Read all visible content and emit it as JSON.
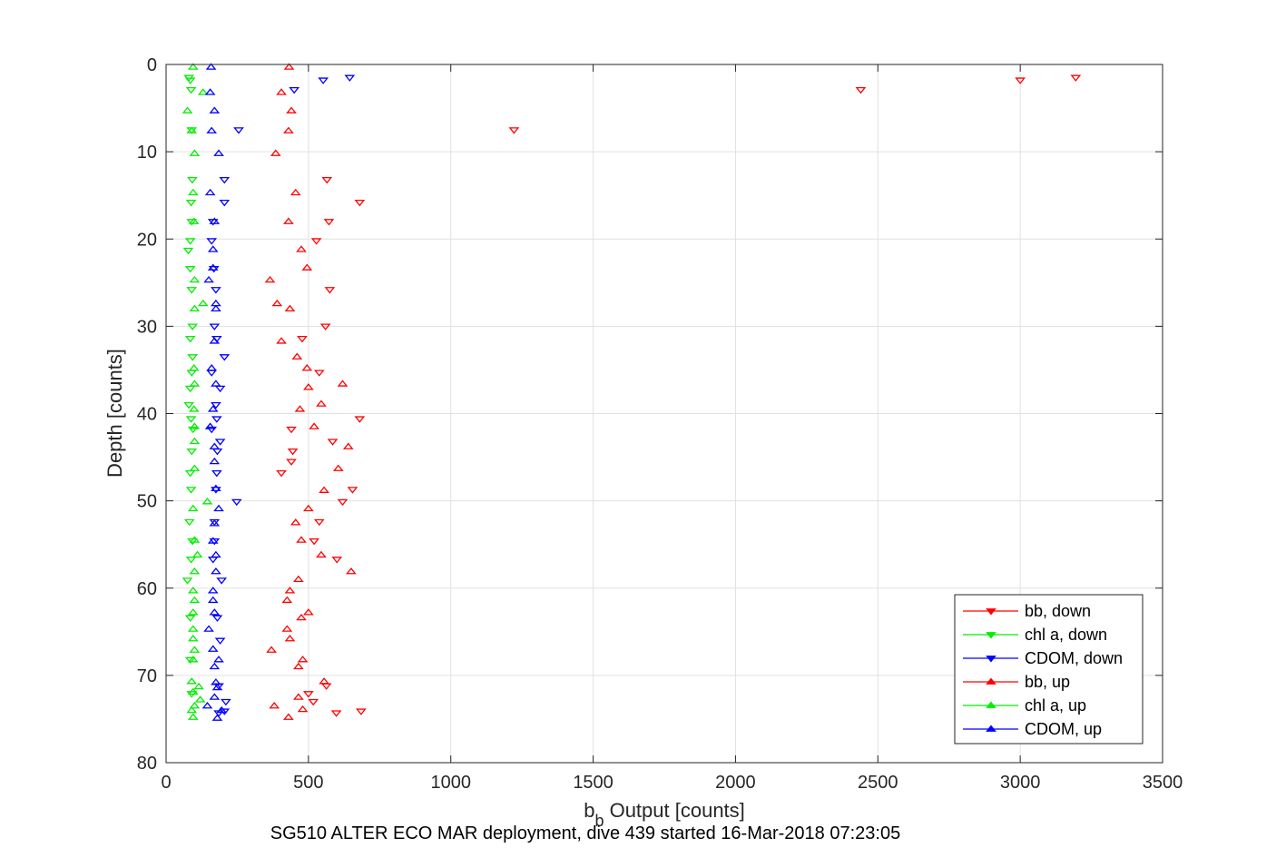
{
  "chart_data": {
    "type": "scatter",
    "caption": "SG510 ALTER ECO MAR deployment, dive 439 started 16-Mar-2018 07:23:05",
    "xlabel_main": "b",
    "xlabel_sub": "b",
    "xlabel_rest": " Output [counts]",
    "ylabel": "Depth [counts]",
    "xlim": [
      0,
      3500
    ],
    "ylim": [
      0,
      80
    ],
    "y_reversed": true,
    "grid": true,
    "xticks": [
      0,
      500,
      1000,
      1500,
      2000,
      2500,
      3000,
      3500
    ],
    "xtick_labels": [
      "0",
      "500",
      "1000",
      "1500",
      "2000",
      "2500",
      "3000",
      "3500"
    ],
    "yticks": [
      0,
      10,
      20,
      30,
      40,
      50,
      60,
      70,
      80
    ],
    "ytick_labels": [
      "0",
      "10",
      "20",
      "30",
      "40",
      "50",
      "60",
      "70",
      "80"
    ],
    "legend_position": "bottom-right",
    "series": [
      {
        "name": "bb, down",
        "color": "#ff0000",
        "marker": "triangle-down",
        "points": [
          [
            3195,
            1.5
          ],
          [
            3000,
            1.8
          ],
          [
            2440,
            2.9
          ],
          [
            1222,
            7.5
          ],
          [
            565,
            13.2
          ],
          [
            680,
            15.8
          ],
          [
            572,
            18.0
          ],
          [
            528,
            20.2
          ],
          [
            575,
            25.8
          ],
          [
            560,
            30.0
          ],
          [
            478,
            31.4
          ],
          [
            538,
            35.3
          ],
          [
            680,
            40.6
          ],
          [
            440,
            41.8
          ],
          [
            585,
            43.2
          ],
          [
            445,
            44.3
          ],
          [
            440,
            45.5
          ],
          [
            405,
            46.8
          ],
          [
            655,
            48.7
          ],
          [
            620,
            50.1
          ],
          [
            538,
            52.4
          ],
          [
            520,
            54.6
          ],
          [
            600,
            56.7
          ],
          [
            500,
            72.1
          ],
          [
            517,
            73.0
          ],
          [
            598,
            74.3
          ],
          [
            685,
            74.1
          ],
          [
            563,
            71.2
          ]
        ]
      },
      {
        "name": "chl a, down",
        "color": "#00ee00",
        "marker": "triangle-down",
        "points": [
          [
            80,
            1.5
          ],
          [
            85,
            1.8
          ],
          [
            88,
            2.9
          ],
          [
            90,
            7.5
          ],
          [
            92,
            13.2
          ],
          [
            88,
            15.8
          ],
          [
            90,
            18.0
          ],
          [
            85,
            20.2
          ],
          [
            78,
            21.3
          ],
          [
            85,
            23.4
          ],
          [
            90,
            25.8
          ],
          [
            93,
            30.0
          ],
          [
            85,
            31.4
          ],
          [
            93,
            33.5
          ],
          [
            90,
            35.3
          ],
          [
            85,
            37.1
          ],
          [
            80,
            39.0
          ],
          [
            88,
            40.6
          ],
          [
            95,
            41.8
          ],
          [
            90,
            44.3
          ],
          [
            85,
            46.8
          ],
          [
            88,
            48.7
          ],
          [
            82,
            52.4
          ],
          [
            93,
            54.6
          ],
          [
            88,
            56.7
          ],
          [
            75,
            59.1
          ],
          [
            85,
            63.4
          ],
          [
            85,
            68.2
          ],
          [
            90,
            72.1
          ]
        ]
      },
      {
        "name": "CDOM, down",
        "color": "#0000ff",
        "marker": "triangle-down",
        "points": [
          [
            645,
            1.5
          ],
          [
            552,
            1.8
          ],
          [
            450,
            2.9
          ],
          [
            255,
            7.5
          ],
          [
            205,
            13.2
          ],
          [
            205,
            15.8
          ],
          [
            165,
            18.0
          ],
          [
            160,
            20.2
          ],
          [
            168,
            23.4
          ],
          [
            175,
            25.8
          ],
          [
            170,
            30.0
          ],
          [
            178,
            31.4
          ],
          [
            205,
            33.5
          ],
          [
            160,
            35.3
          ],
          [
            190,
            37.1
          ],
          [
            175,
            39.0
          ],
          [
            178,
            40.6
          ],
          [
            160,
            41.8
          ],
          [
            190,
            43.2
          ],
          [
            180,
            44.3
          ],
          [
            178,
            46.8
          ],
          [
            175,
            48.7
          ],
          [
            248,
            50.1
          ],
          [
            170,
            52.4
          ],
          [
            170,
            54.6
          ],
          [
            165,
            56.7
          ],
          [
            195,
            59.1
          ],
          [
            180,
            63.4
          ],
          [
            190,
            66.0
          ],
          [
            185,
            71.2
          ],
          [
            210,
            73.0
          ],
          [
            185,
            74.3
          ],
          [
            205,
            74.1
          ]
        ]
      },
      {
        "name": "bb, up",
        "color": "#ff0000",
        "marker": "triangle-up",
        "points": [
          [
            432,
            0.3
          ],
          [
            405,
            3.2
          ],
          [
            440,
            5.3
          ],
          [
            430,
            7.6
          ],
          [
            385,
            10.2
          ],
          [
            455,
            14.7
          ],
          [
            430,
            18.0
          ],
          [
            475,
            21.2
          ],
          [
            495,
            23.3
          ],
          [
            365,
            24.7
          ],
          [
            390,
            27.4
          ],
          [
            435,
            28.0
          ],
          [
            405,
            31.7
          ],
          [
            460,
            33.5
          ],
          [
            495,
            34.8
          ],
          [
            500,
            37.0
          ],
          [
            620,
            36.6
          ],
          [
            545,
            38.9
          ],
          [
            470,
            39.5
          ],
          [
            520,
            41.5
          ],
          [
            640,
            43.8
          ],
          [
            605,
            46.3
          ],
          [
            555,
            48.8
          ],
          [
            500,
            50.9
          ],
          [
            455,
            52.5
          ],
          [
            475,
            54.5
          ],
          [
            545,
            56.2
          ],
          [
            650,
            58.1
          ],
          [
            465,
            59.0
          ],
          [
            435,
            60.3
          ],
          [
            425,
            61.4
          ],
          [
            500,
            62.8
          ],
          [
            475,
            63.4
          ],
          [
            425,
            64.7
          ],
          [
            435,
            65.8
          ],
          [
            370,
            67.1
          ],
          [
            480,
            68.2
          ],
          [
            465,
            69.0
          ],
          [
            555,
            70.7
          ],
          [
            465,
            72.5
          ],
          [
            380,
            73.5
          ],
          [
            480,
            73.9
          ],
          [
            430,
            74.8
          ]
        ]
      },
      {
        "name": "chl a, up",
        "color": "#00ee00",
        "marker": "triangle-up",
        "points": [
          [
            95,
            0.3
          ],
          [
            130,
            3.2
          ],
          [
            75,
            5.3
          ],
          [
            90,
            7.6
          ],
          [
            100,
            10.2
          ],
          [
            95,
            14.7
          ],
          [
            98,
            18.0
          ],
          [
            100,
            24.7
          ],
          [
            130,
            27.4
          ],
          [
            100,
            28.0
          ],
          [
            98,
            34.8
          ],
          [
            100,
            36.6
          ],
          [
            98,
            39.5
          ],
          [
            100,
            41.5
          ],
          [
            100,
            43.2
          ],
          [
            100,
            46.3
          ],
          [
            145,
            50.1
          ],
          [
            95,
            50.9
          ],
          [
            100,
            54.5
          ],
          [
            110,
            56.2
          ],
          [
            100,
            58.1
          ],
          [
            95,
            60.3
          ],
          [
            100,
            61.4
          ],
          [
            95,
            62.8
          ],
          [
            95,
            64.7
          ],
          [
            95,
            65.8
          ],
          [
            100,
            67.1
          ],
          [
            95,
            68.2
          ],
          [
            90,
            70.7
          ],
          [
            115,
            71.3
          ],
          [
            95,
            71.9
          ],
          [
            120,
            72.8
          ],
          [
            100,
            73.5
          ],
          [
            90,
            74.0
          ],
          [
            95,
            74.8
          ]
        ]
      },
      {
        "name": "CDOM, up",
        "color": "#0000ff",
        "marker": "triangle-up",
        "points": [
          [
            158,
            0.3
          ],
          [
            155,
            3.2
          ],
          [
            170,
            5.3
          ],
          [
            160,
            7.6
          ],
          [
            185,
            10.2
          ],
          [
            155,
            14.7
          ],
          [
            170,
            18.0
          ],
          [
            165,
            21.2
          ],
          [
            165,
            23.3
          ],
          [
            150,
            24.7
          ],
          [
            175,
            27.4
          ],
          [
            175,
            28.0
          ],
          [
            170,
            31.7
          ],
          [
            160,
            34.8
          ],
          [
            175,
            36.6
          ],
          [
            165,
            39.5
          ],
          [
            155,
            41.5
          ],
          [
            170,
            43.8
          ],
          [
            170,
            45.5
          ],
          [
            175,
            48.6
          ],
          [
            185,
            50.9
          ],
          [
            170,
            52.6
          ],
          [
            165,
            54.6
          ],
          [
            175,
            56.2
          ],
          [
            175,
            58.1
          ],
          [
            165,
            60.3
          ],
          [
            165,
            61.4
          ],
          [
            170,
            62.8
          ],
          [
            150,
            64.7
          ],
          [
            165,
            67.0
          ],
          [
            185,
            68.2
          ],
          [
            170,
            69.0
          ],
          [
            175,
            70.8
          ],
          [
            180,
            71.4
          ],
          [
            170,
            72.5
          ],
          [
            145,
            73.5
          ],
          [
            195,
            74.0
          ],
          [
            180,
            74.9
          ]
        ]
      }
    ]
  }
}
